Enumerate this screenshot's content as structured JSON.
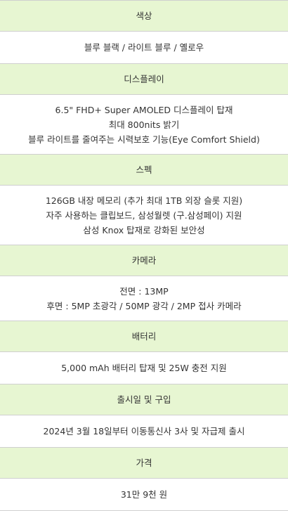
{
  "specs": {
    "color": {
      "heading": "색상",
      "lines": [
        "블루 블랙 / 라이트 블루 / 옐로우"
      ]
    },
    "display": {
      "heading": "디스플레이",
      "lines": [
        "6.5\" FHD+ Super AMOLED 디스플레이 탑재",
        "최대 800nits 밝기",
        "블루 라이트를 줄여주는 시력보호 기능(Eye Comfort Shield)"
      ]
    },
    "spec": {
      "heading": "스펙",
      "lines": [
        "126GB 내장 메모리 (추가 최대 1TB 외장 슬롯 지원)",
        "자주 사용하는 클립보드, 삼성월렛 (구.삼성페이) 지원",
        "삼성 Knox 탑재로 강화된 보안성"
      ]
    },
    "camera": {
      "heading": "카메라",
      "lines": [
        "전면 : 13MP",
        "후면 : 5MP 초광각 / 50MP 광각 / 2MP 접사 카메라"
      ]
    },
    "battery": {
      "heading": "배터리",
      "lines": [
        "5,000 mAh 배터리 탑재 및 25W 충전 지원"
      ]
    },
    "release": {
      "heading": "출시일 및 구입",
      "lines": [
        "2024년 3월 18일부터 이동통신사 3사 및 자급제 출시"
      ]
    },
    "price": {
      "heading": "가격",
      "lines": [
        "31만 9천 원"
      ]
    }
  },
  "colors": {
    "header_background": "#e7f6d2",
    "body_background": "#ffffff",
    "border": "#cfcfcf",
    "text": "#333333"
  }
}
